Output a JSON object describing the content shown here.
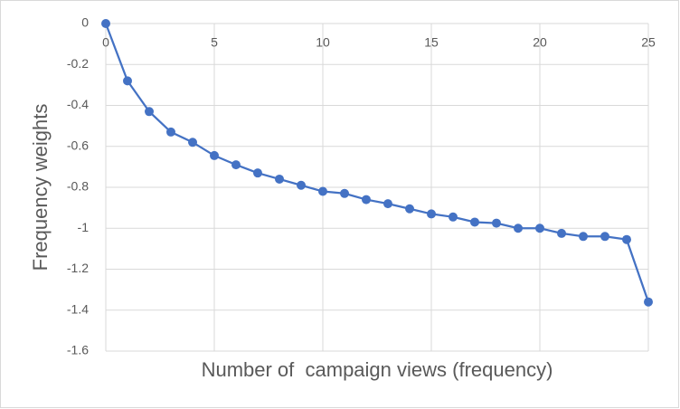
{
  "chart_data": {
    "type": "line",
    "x_label": "Number of  campaign views (frequency)",
    "y_label": "Frequency weights",
    "x": [
      0,
      1,
      2,
      3,
      4,
      5,
      6,
      7,
      8,
      9,
      10,
      11,
      12,
      13,
      14,
      15,
      16,
      17,
      18,
      19,
      20,
      21,
      22,
      23,
      24,
      25
    ],
    "values": [
      0,
      -0.28,
      -0.43,
      -0.53,
      -0.58,
      -0.645,
      -0.69,
      -0.73,
      -0.76,
      -0.79,
      -0.82,
      -0.83,
      -0.86,
      -0.88,
      -0.905,
      -0.93,
      -0.945,
      -0.97,
      -0.975,
      -1.0,
      -1.0,
      -1.025,
      -1.04,
      -1.04,
      -1.055,
      -1.36
    ],
    "color": "#4472c4",
    "xlim": [
      0,
      25
    ],
    "xticks": [
      0,
      5,
      10,
      15,
      20,
      25
    ],
    "ylim": [
      -1.6,
      0
    ],
    "yticks": [
      0,
      -0.2,
      -0.4,
      -0.6,
      -0.8,
      -1,
      -1.2,
      -1.4,
      -1.6
    ],
    "grid": true
  }
}
